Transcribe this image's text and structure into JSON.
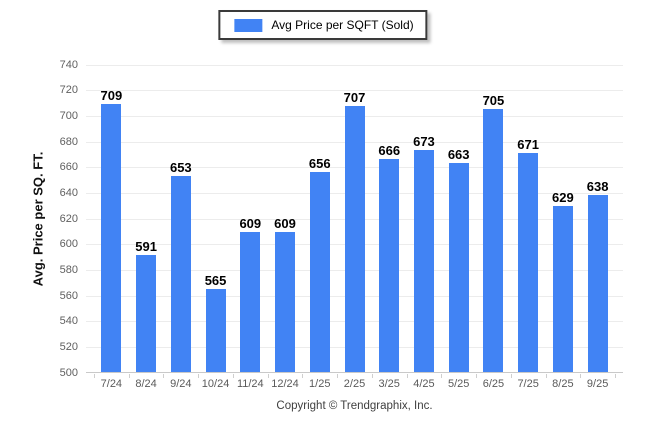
{
  "legend": {
    "label": "Avg Price per SQFT (Sold)"
  },
  "footer": {
    "copyright": "Copyright © Trendgraphix, Inc."
  },
  "colors": {
    "bar": "#4183f4",
    "grid": "#ececec",
    "axis": "#c9c9c9",
    "axis_tick": "#cfcfcf",
    "ytick_label": "#606060",
    "xtick_label": "#5a5a5a",
    "value_label": "#000000",
    "legend_border": "#3a3a3a"
  },
  "chart_data": {
    "type": "bar",
    "title": "",
    "xlabel": "",
    "ylabel": "Avg. Price per SQ. FT.",
    "ylim": [
      500,
      740
    ],
    "ytick_step": 20,
    "grid": "horizontal",
    "legend_position": "top-center",
    "categories": [
      "7/24",
      "8/24",
      "9/24",
      "10/24",
      "11/24",
      "12/24",
      "1/25",
      "2/25",
      "3/25",
      "4/25",
      "5/25",
      "6/25",
      "7/25",
      "8/25",
      "9/25"
    ],
    "series": [
      {
        "name": "Avg Price per SQFT (Sold)",
        "values": [
          709,
          591,
          653,
          565,
          609,
          609,
          656,
          707,
          666,
          673,
          663,
          705,
          671,
          629,
          638
        ]
      }
    ]
  }
}
